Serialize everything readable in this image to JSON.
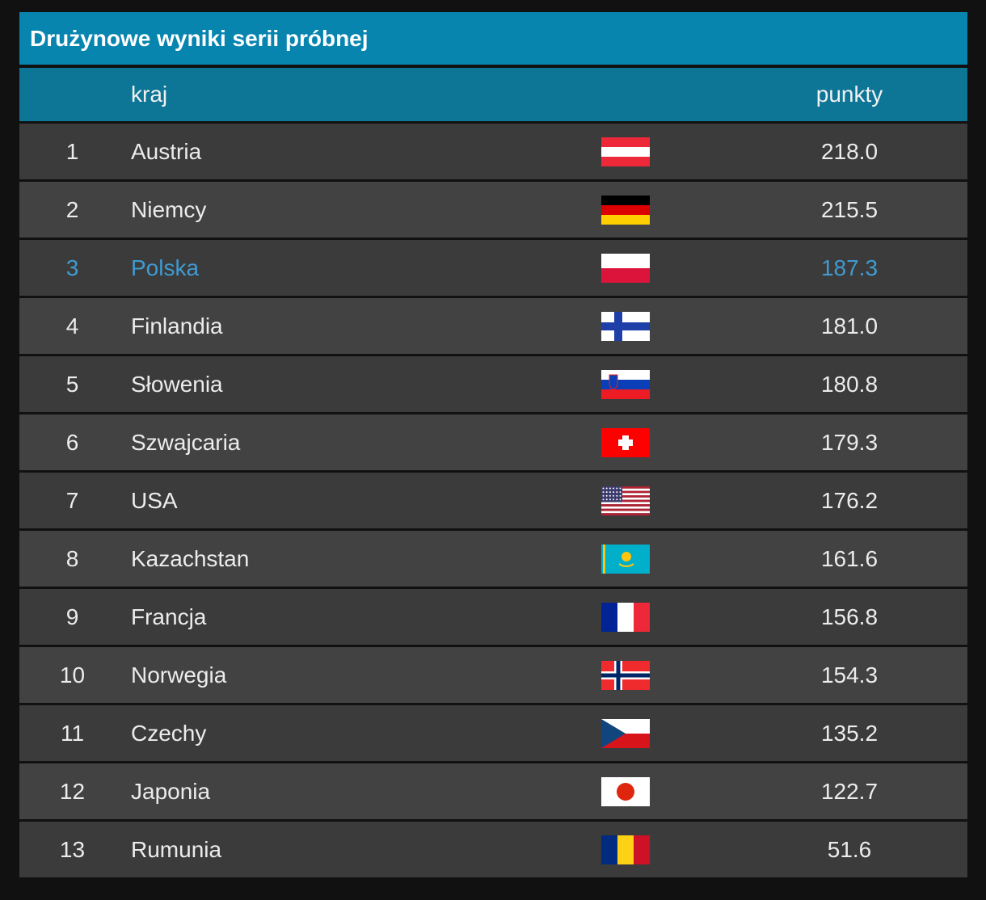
{
  "header": {
    "title": "Drużynowe wyniki serii próbnej"
  },
  "table": {
    "columns": {
      "country": "kraj",
      "points": "punkty"
    },
    "rows": [
      {
        "rank": 1,
        "country": "Austria",
        "points": "218.0"
      },
      {
        "rank": 2,
        "country": "Niemcy",
        "points": "215.5"
      },
      {
        "rank": 3,
        "country": "Polska",
        "points": "187.3"
      },
      {
        "rank": 4,
        "country": "Finlandia",
        "points": "181.0"
      },
      {
        "rank": 5,
        "country": "Słowenia",
        "points": "180.8"
      },
      {
        "rank": 6,
        "country": "Szwajcaria",
        "points": "179.3"
      },
      {
        "rank": 7,
        "country": "USA",
        "points": "176.2"
      },
      {
        "rank": 8,
        "country": "Kazachstan",
        "points": "161.6"
      },
      {
        "rank": 9,
        "country": "Francja",
        "points": "156.8"
      },
      {
        "rank": 10,
        "country": "Norwegia",
        "points": "154.3"
      },
      {
        "rank": 11,
        "country": "Czechy",
        "points": "135.2"
      },
      {
        "rank": 12,
        "country": "Japonia",
        "points": "122.7"
      },
      {
        "rank": 13,
        "country": "Rumunia",
        "points": "51.6"
      }
    ]
  }
}
